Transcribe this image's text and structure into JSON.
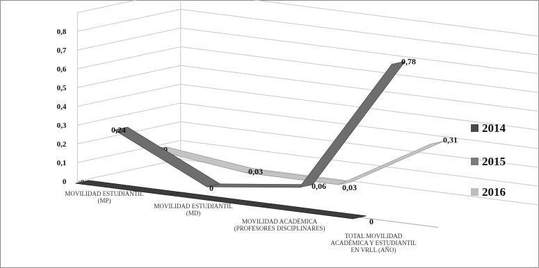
{
  "chart_data": {
    "type": "line",
    "style": "3d-ribbon",
    "categories": [
      [
        "MOVILIDAD ESTUDIANTIL",
        "(MP)"
      ],
      [
        "MOVILIDAD ESTUDIANTIL",
        "(MD)"
      ],
      [
        "MOVILIDAD  ACADÉMICA",
        "(PROFESORES DISCIPLINARES)"
      ],
      [
        "TOTAL MOVILIDAD",
        "ACADÉMICA Y ESTUDIANTIL",
        "EN VRLL (AÑO)"
      ]
    ],
    "series": [
      {
        "name": "2014",
        "values": [
          0,
          0,
          0,
          0
        ],
        "labels": [
          "0",
          "0",
          "0",
          "0"
        ],
        "color": "#4a4a4a"
      },
      {
        "name": "2015",
        "values": [
          0.24,
          0,
          0.06,
          0.78
        ],
        "labels": [
          "0,24",
          "0",
          "0,06",
          "0,78"
        ],
        "color": "#7b7b7b"
      },
      {
        "name": "2016",
        "values": [
          0.09,
          0.03,
          0.03,
          0.31
        ],
        "labels": [
          "0,09",
          "0,03",
          "0,03",
          "0,31"
        ],
        "color": "#bdbdbd"
      }
    ],
    "yticks": [
      "0",
      "0,1",
      "0,2",
      "0,3",
      "0,4",
      "0,5",
      "0,6",
      "0,7",
      "0,8"
    ],
    "ylim": [
      0,
      0.8
    ],
    "grid": true,
    "legend_position": "right"
  }
}
